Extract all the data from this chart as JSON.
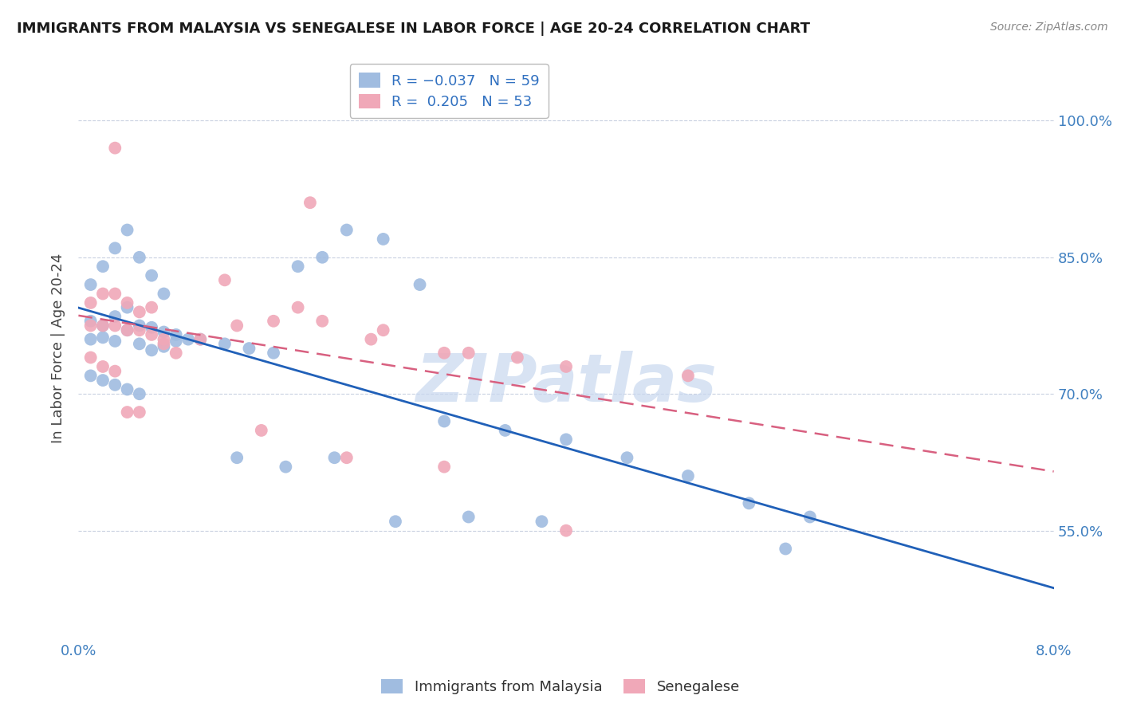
{
  "title": "IMMIGRANTS FROM MALAYSIA VS SENEGALESE IN LABOR FORCE | AGE 20-24 CORRELATION CHART",
  "source": "Source: ZipAtlas.com",
  "ylabel": "In Labor Force | Age 20-24",
  "y_ticks": [
    0.55,
    0.7,
    0.85,
    1.0
  ],
  "y_tick_labels": [
    "55.0%",
    "70.0%",
    "85.0%",
    "100.0%"
  ],
  "x_range": [
    0.0,
    0.08
  ],
  "y_range": [
    0.43,
    1.07
  ],
  "malaysia_dot_color": "#a0bce0",
  "senegal_dot_color": "#f0a8b8",
  "malaysia_line_color": "#2060b8",
  "senegal_line_color": "#d86080",
  "watermark": "ZIPatlas",
  "watermark_color": "#c8d8ef",
  "legend_text_color": "#3070c0",
  "legend_malaysia_label": "Immigrants from Malaysia",
  "legend_senegal_label": "Senegalese",
  "title_color": "#1a1a1a",
  "source_color": "#888888",
  "axis_label_color": "#4080c0",
  "y_label_color": "#444444",
  "grid_color": "#c8d0e0",
  "blue_scatter_x": [
    0.001,
    0.002,
    0.003,
    0.004,
    0.005,
    0.006,
    0.007,
    0.008,
    0.009,
    0.001,
    0.002,
    0.003,
    0.004,
    0.005,
    0.006,
    0.007,
    0.008,
    0.001,
    0.002,
    0.003,
    0.004,
    0.005,
    0.006,
    0.007,
    0.001,
    0.002,
    0.003,
    0.004,
    0.005,
    0.01,
    0.012,
    0.014,
    0.016,
    0.018,
    0.02,
    0.022,
    0.025,
    0.028,
    0.03,
    0.035,
    0.04,
    0.045,
    0.05,
    0.055,
    0.06,
    0.013,
    0.017,
    0.021,
    0.026,
    0.032,
    0.038,
    0.058
  ],
  "blue_scatter_y": [
    0.76,
    0.762,
    0.758,
    0.77,
    0.775,
    0.773,
    0.768,
    0.765,
    0.76,
    0.78,
    0.775,
    0.785,
    0.795,
    0.755,
    0.748,
    0.752,
    0.758,
    0.82,
    0.84,
    0.86,
    0.88,
    0.85,
    0.83,
    0.81,
    0.72,
    0.715,
    0.71,
    0.705,
    0.7,
    0.76,
    0.755,
    0.75,
    0.745,
    0.84,
    0.85,
    0.88,
    0.87,
    0.82,
    0.67,
    0.66,
    0.65,
    0.63,
    0.61,
    0.58,
    0.565,
    0.63,
    0.62,
    0.63,
    0.56,
    0.565,
    0.56,
    0.53
  ],
  "pink_scatter_x": [
    0.001,
    0.002,
    0.003,
    0.004,
    0.005,
    0.006,
    0.007,
    0.008,
    0.001,
    0.002,
    0.003,
    0.004,
    0.005,
    0.006,
    0.007,
    0.001,
    0.002,
    0.003,
    0.004,
    0.005,
    0.01,
    0.013,
    0.016,
    0.02,
    0.025,
    0.03,
    0.036,
    0.012,
    0.018,
    0.024,
    0.032,
    0.04,
    0.05,
    0.015,
    0.022,
    0.03,
    0.04,
    0.003,
    0.019
  ],
  "pink_scatter_y": [
    0.775,
    0.775,
    0.775,
    0.77,
    0.77,
    0.765,
    0.755,
    0.745,
    0.8,
    0.81,
    0.81,
    0.8,
    0.79,
    0.795,
    0.76,
    0.74,
    0.73,
    0.725,
    0.68,
    0.68,
    0.76,
    0.775,
    0.78,
    0.78,
    0.77,
    0.745,
    0.74,
    0.825,
    0.795,
    0.76,
    0.745,
    0.73,
    0.72,
    0.66,
    0.63,
    0.62,
    0.55,
    0.97,
    0.91
  ]
}
